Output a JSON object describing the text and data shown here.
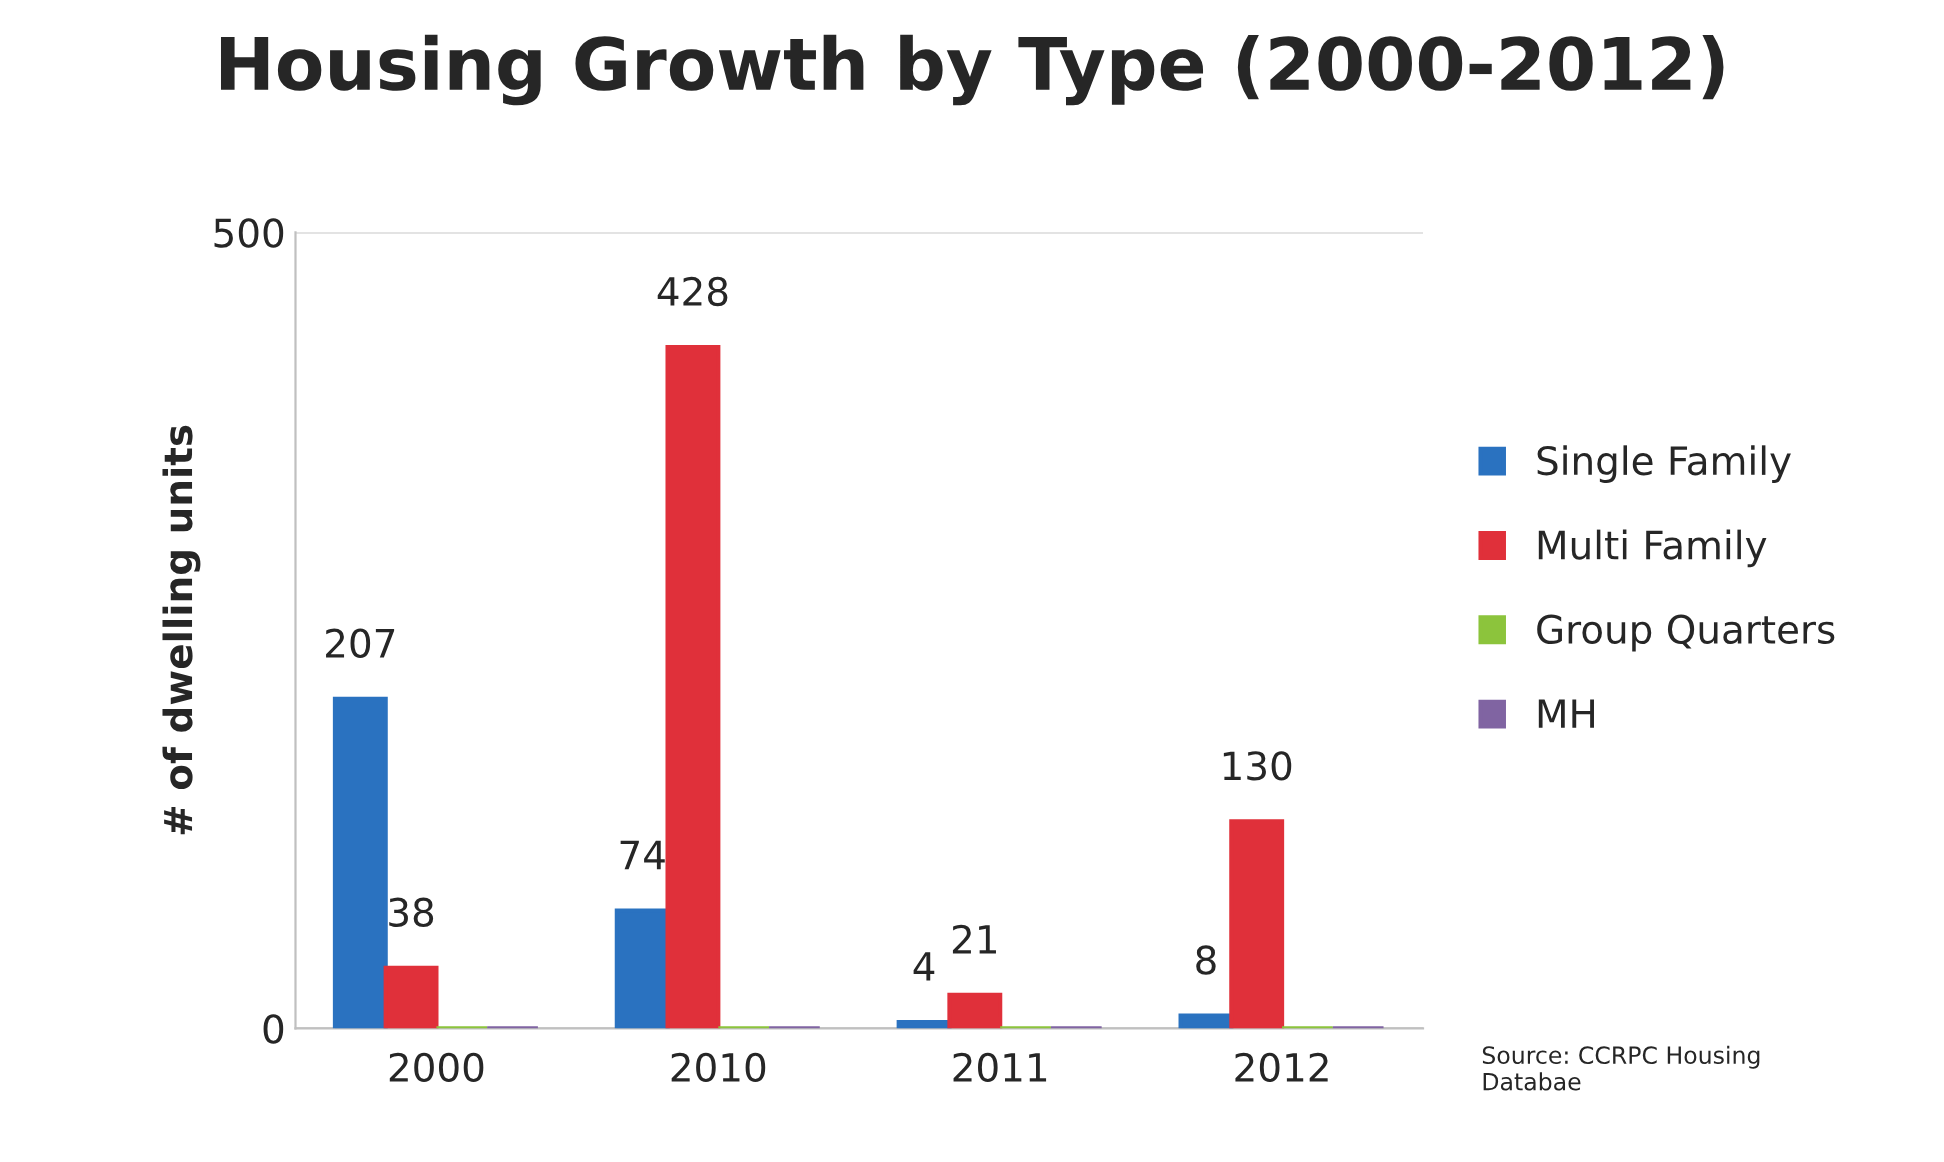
{
  "chart_data": {
    "type": "bar",
    "title": "Housing Growth by Type (2000-2012)",
    "ylabel": "# of dwelling units",
    "categories": [
      "2000",
      "2010",
      "2011",
      "2012"
    ],
    "series": [
      {
        "name": "Single Family",
        "color": "#2a72c0",
        "values": [
          207,
          74,
          4,
          8
        ],
        "value_labels": [
          "207",
          "74",
          "4",
          "8"
        ]
      },
      {
        "name": "Multi Family",
        "color": "#e0303a",
        "values": [
          38,
          428,
          21,
          130
        ],
        "value_labels": [
          "38",
          "428",
          "21",
          "130"
        ]
      },
      {
        "name": "Group Quarters",
        "color": "#8cc43c",
        "values": [
          0,
          0,
          0,
          0
        ]
      },
      {
        "name": "MH",
        "color": "#8064a2",
        "values": [
          0,
          0,
          0,
          0
        ]
      }
    ],
    "ylim": [
      0,
      500
    ],
    "yticks": [
      0,
      500
    ],
    "grid": "y",
    "legend": "right",
    "annotations": [
      "Source: CCRPC Housing\nDatabae"
    ]
  }
}
